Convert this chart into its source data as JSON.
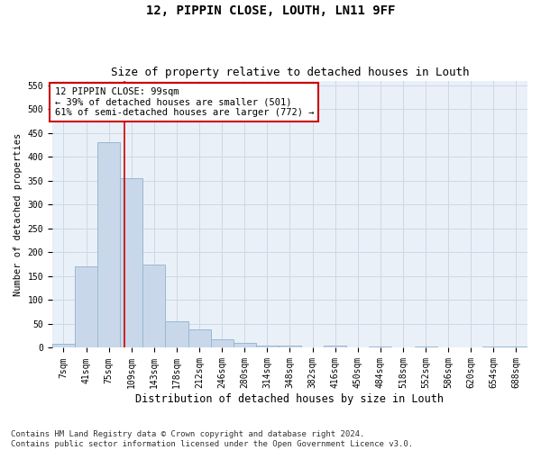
{
  "title": "12, PIPPIN CLOSE, LOUTH, LN11 9FF",
  "subtitle": "Size of property relative to detached houses in Louth",
  "xlabel": "Distribution of detached houses by size in Louth",
  "ylabel": "Number of detached properties",
  "bin_labels": [
    "7sqm",
    "41sqm",
    "75sqm",
    "109sqm",
    "143sqm",
    "178sqm",
    "212sqm",
    "246sqm",
    "280sqm",
    "314sqm",
    "348sqm",
    "382sqm",
    "416sqm",
    "450sqm",
    "484sqm",
    "518sqm",
    "552sqm",
    "586sqm",
    "620sqm",
    "654sqm",
    "688sqm"
  ],
  "bar_heights": [
    8,
    170,
    430,
    355,
    175,
    55,
    38,
    18,
    10,
    5,
    5,
    0,
    4,
    0,
    3,
    0,
    3,
    0,
    0,
    3,
    3
  ],
  "bar_color": "#c8d8ea",
  "bar_edgecolor": "#9ab8d0",
  "bar_linewidth": 0.7,
  "vline_x": 2.68,
  "vline_color": "#cc0000",
  "vline_linewidth": 1.2,
  "annotation_text": "12 PIPPIN CLOSE: 99sqm\n← 39% of detached houses are smaller (501)\n61% of semi-detached houses are larger (772) →",
  "annotation_box_edgecolor": "#cc0000",
  "annotation_box_facecolor": "#ffffff",
  "annotation_fontsize": 7.5,
  "ylim": [
    0,
    560
  ],
  "yticks": [
    0,
    50,
    100,
    150,
    200,
    250,
    300,
    350,
    400,
    450,
    500,
    550
  ],
  "grid_color": "#ccd8e8",
  "background_color": "#eaf0f8",
  "title_fontsize": 10,
  "subtitle_fontsize": 9,
  "xlabel_fontsize": 8.5,
  "ylabel_fontsize": 7.5,
  "tick_fontsize": 7,
  "footer_text": "Contains HM Land Registry data © Crown copyright and database right 2024.\nContains public sector information licensed under the Open Government Licence v3.0.",
  "footer_fontsize": 6.5
}
